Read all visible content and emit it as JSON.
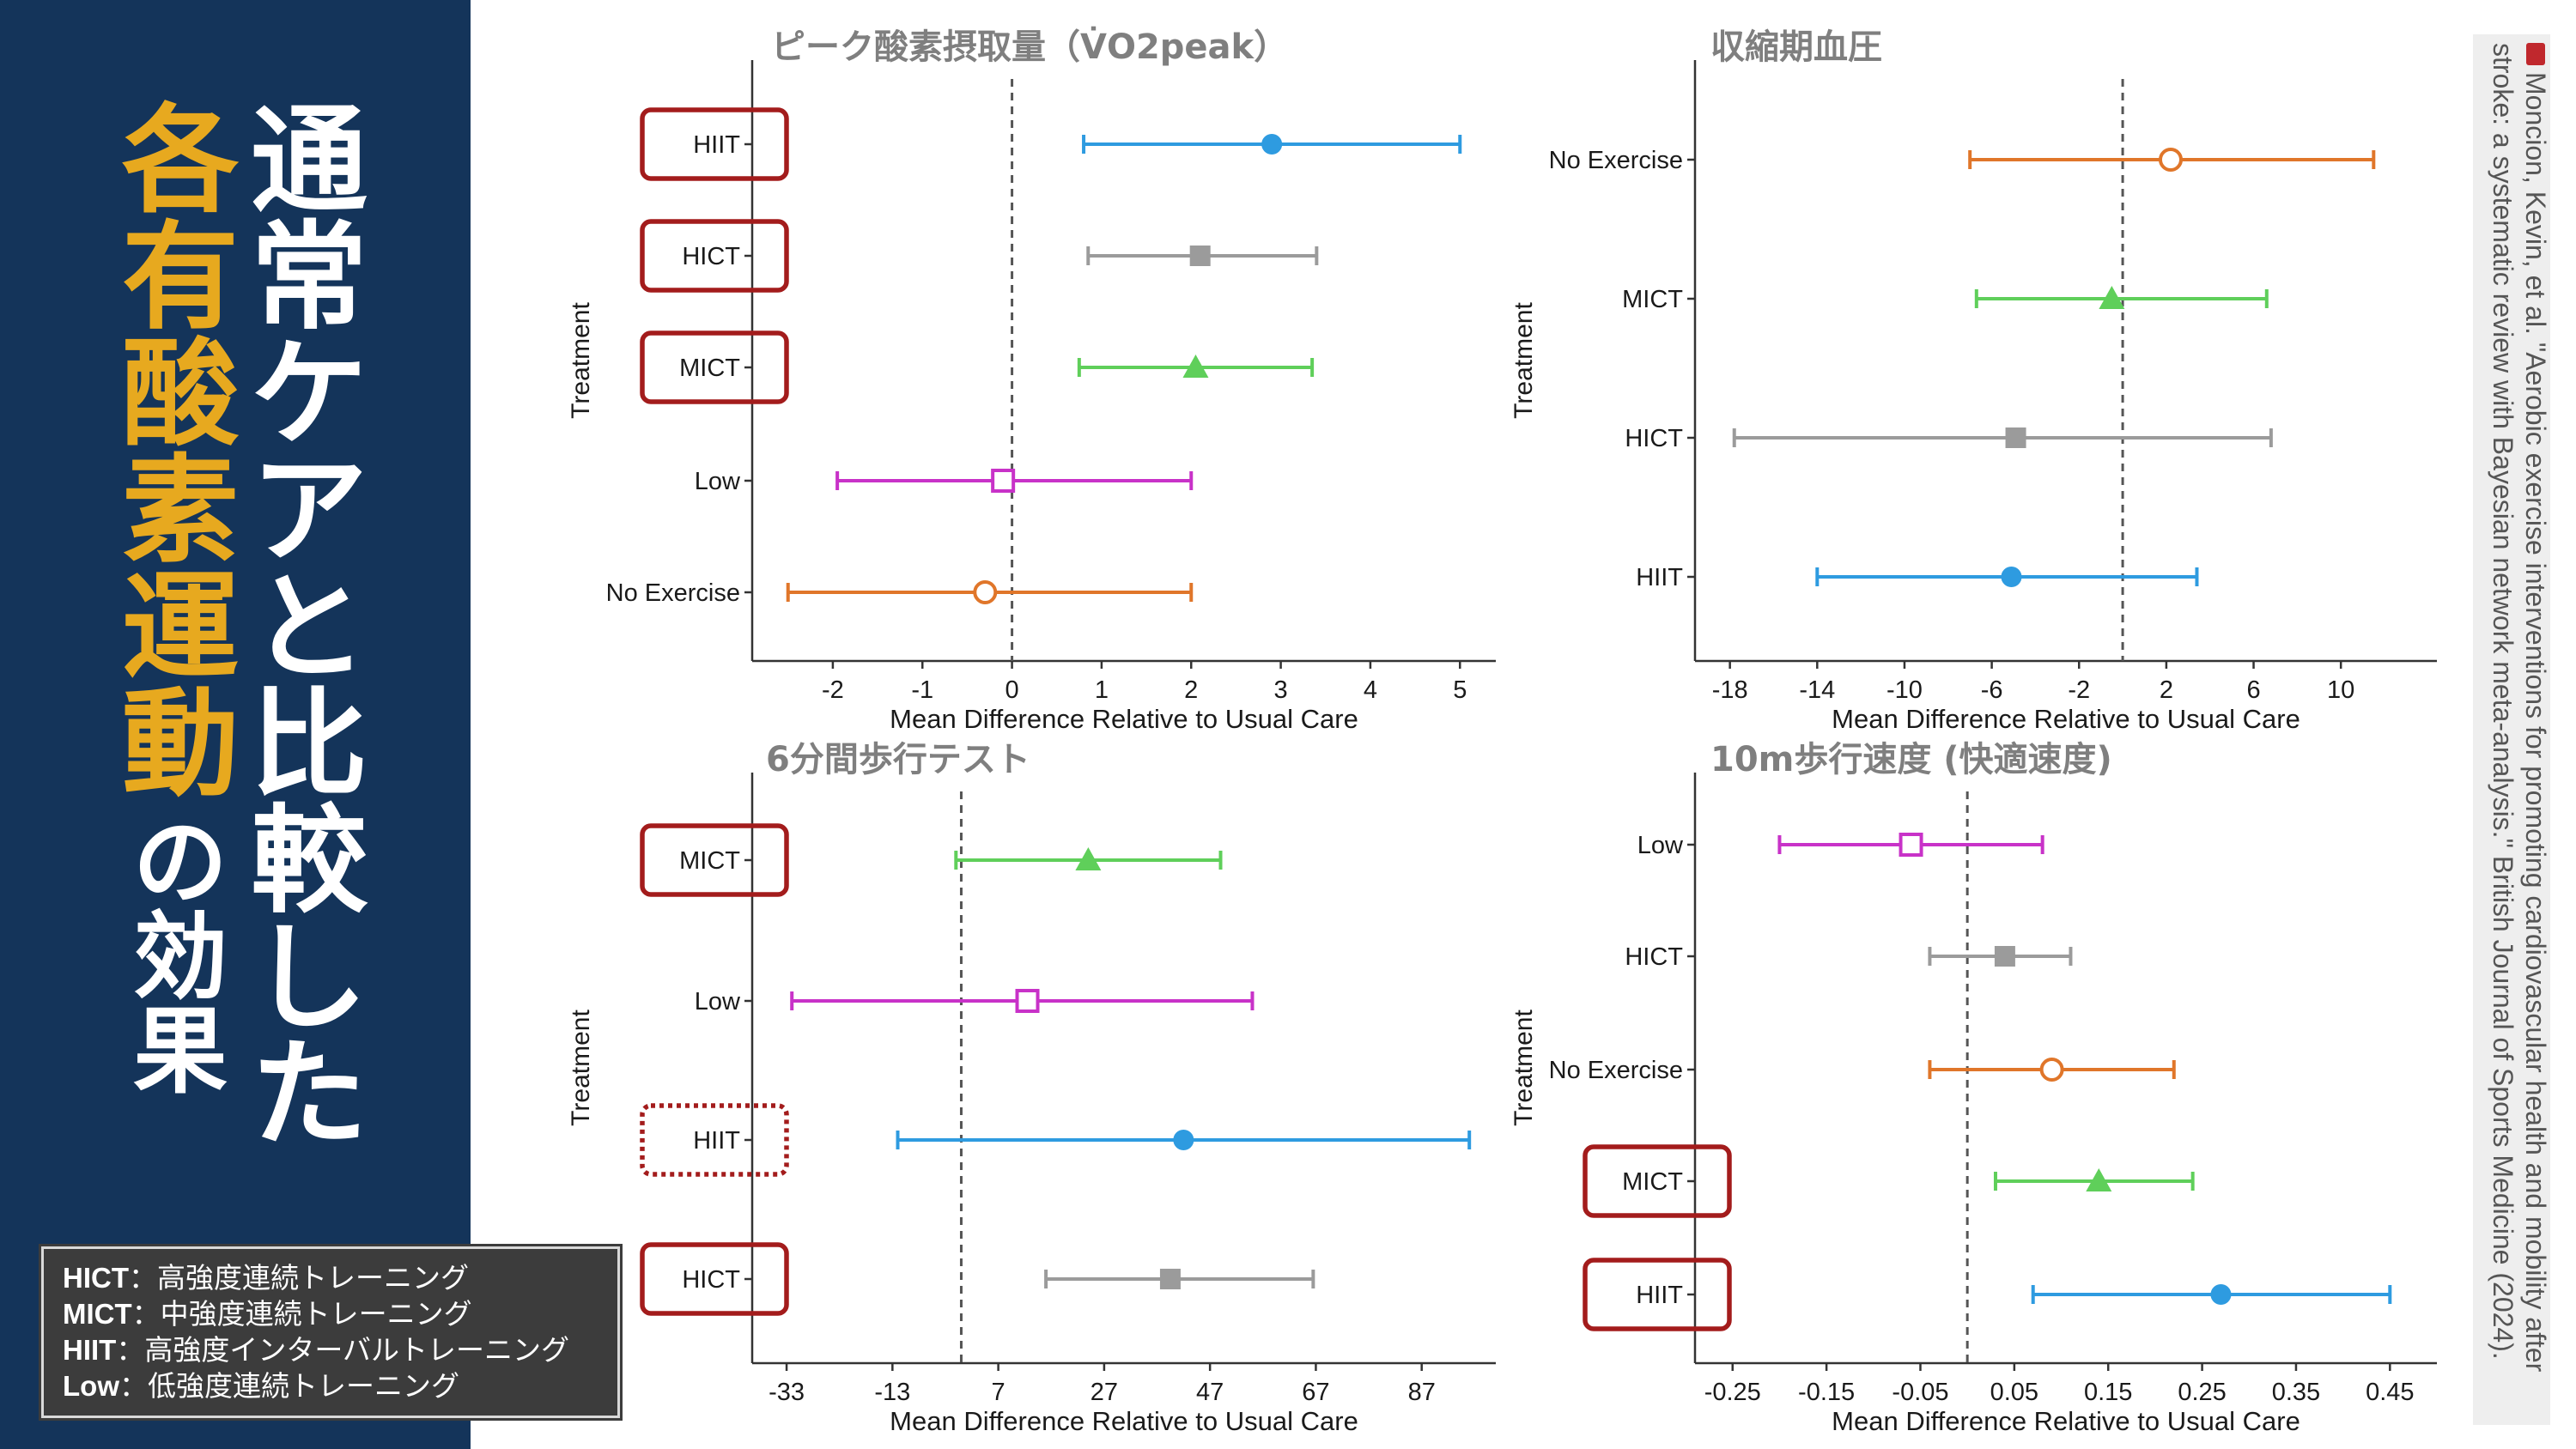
{
  "sidebar": {
    "title_main": "通常ケアと比較した",
    "title_highlight": "各有酸素運動",
    "title_suffix": "の効果",
    "legend": [
      {
        "abbr": "HICT",
        "desc": "：高強度連続トレーニング"
      },
      {
        "abbr": "MICT",
        "desc": "：中強度連続トレーニング"
      },
      {
        "abbr": "HIIT",
        "desc": "：高強度インターバルトレーニング"
      },
      {
        "abbr": "Low",
        "desc": "：低強度連続トレーニング"
      }
    ]
  },
  "citation": "Moncion, Kevin, et al. \"Aerobic exercise interventions for promoting cardiovascular health and mobility after stroke: a systematic review with Bayesian network meta-analysis.\" British Journal of Sports Medicine (2024).",
  "colors": {
    "HIIT": "#2e9be0",
    "HICT": "#9b9b9b",
    "MICT": "#5fcf5a",
    "Low": "#c832c8",
    "No Exercise": "#e0762a",
    "highlight": "#a31c1c"
  },
  "chart_data": [
    {
      "type": "scatter",
      "title": "ピーク酸素摂取量（V̇O2peak）",
      "xlabel": "Mean Difference Relative to Usual Care",
      "ylabel": "Treatment",
      "xlim": [
        -2.9,
        5.4
      ],
      "xticks": [
        "-2",
        "-1",
        "0",
        "1",
        "2",
        "3",
        "4",
        "5"
      ],
      "ref_line": 0,
      "rows": [
        {
          "name": "HIIT",
          "est": 2.9,
          "lo": 0.8,
          "hi": 5.0,
          "marker": "circle",
          "highlight": "solid"
        },
        {
          "name": "HICT",
          "est": 2.1,
          "lo": 0.85,
          "hi": 3.4,
          "marker": "square",
          "highlight": "solid"
        },
        {
          "name": "MICT",
          "est": 2.05,
          "lo": 0.75,
          "hi": 3.35,
          "marker": "triangle",
          "highlight": "solid"
        },
        {
          "name": "Low",
          "est": -0.1,
          "lo": -1.95,
          "hi": 2.0,
          "marker": "open-square",
          "highlight": "none"
        },
        {
          "name": "No Exercise",
          "est": -0.3,
          "lo": -2.5,
          "hi": 2.0,
          "marker": "open-circle",
          "highlight": "none"
        }
      ]
    },
    {
      "type": "scatter",
      "title": "収縮期血圧",
      "xlabel": "Mean Difference Relative to Usual Care",
      "ylabel": "Treatment",
      "xlim": [
        -19.6,
        14.4
      ],
      "xticks": [
        "-18",
        "-14",
        "-10",
        "-6",
        "-2",
        "2",
        "6",
        "10"
      ],
      "ref_line": 0,
      "rows": [
        {
          "name": "No Exercise",
          "est": 2.2,
          "lo": -7.0,
          "hi": 11.5,
          "marker": "open-circle",
          "highlight": "none"
        },
        {
          "name": "MICT",
          "est": -0.5,
          "lo": -6.7,
          "hi": 6.6,
          "marker": "triangle",
          "highlight": "none"
        },
        {
          "name": "HICT",
          "est": -4.9,
          "lo": -17.8,
          "hi": 6.8,
          "marker": "square",
          "highlight": "none"
        },
        {
          "name": "HIIT",
          "est": -5.1,
          "lo": -14.0,
          "hi": 3.4,
          "marker": "circle",
          "highlight": "none"
        }
      ]
    },
    {
      "type": "scatter",
      "title": "6分間歩行テスト",
      "xlabel": "Mean Difference Relative to Usual Care",
      "ylabel": "Treatment",
      "xlim": [
        -39.5,
        101
      ],
      "xticks": [
        "-33",
        "-13",
        "7",
        "27",
        "47",
        "67",
        "87"
      ],
      "ref_line": 0,
      "rows": [
        {
          "name": "MICT",
          "est": 24,
          "lo": -1,
          "hi": 49,
          "marker": "triangle",
          "highlight": "solid"
        },
        {
          "name": "Low",
          "est": 12.5,
          "lo": -32,
          "hi": 55,
          "marker": "open-square",
          "highlight": "none"
        },
        {
          "name": "HIIT",
          "est": 42,
          "lo": -12,
          "hi": 96,
          "marker": "circle",
          "highlight": "dotted"
        },
        {
          "name": "HICT",
          "est": 39.5,
          "lo": 16,
          "hi": 66.5,
          "marker": "square",
          "highlight": "solid"
        }
      ]
    },
    {
      "type": "scatter",
      "title": "10m歩行速度 (快適速度)",
      "xlabel": "Mean Difference Relative to Usual Care",
      "ylabel": "Treatment",
      "xlim": [
        -0.29,
        0.5
      ],
      "xticks": [
        "-0.25",
        "-0.15",
        "-0.05",
        "0.05",
        "0.15",
        "0.25",
        "0.35",
        "0.45"
      ],
      "ref_line": 0,
      "rows": [
        {
          "name": "Low",
          "est": -0.06,
          "lo": -0.2,
          "hi": 0.08,
          "marker": "open-square",
          "highlight": "none"
        },
        {
          "name": "HICT",
          "est": 0.04,
          "lo": -0.04,
          "hi": 0.11,
          "marker": "square",
          "highlight": "none"
        },
        {
          "name": "No Exercise",
          "est": 0.09,
          "lo": -0.04,
          "hi": 0.22,
          "marker": "open-circle",
          "highlight": "none"
        },
        {
          "name": "MICT",
          "est": 0.14,
          "lo": 0.03,
          "hi": 0.24,
          "marker": "triangle",
          "highlight": "solid"
        },
        {
          "name": "HIIT",
          "est": 0.27,
          "lo": 0.07,
          "hi": 0.45,
          "marker": "circle",
          "highlight": "solid"
        }
      ]
    }
  ]
}
